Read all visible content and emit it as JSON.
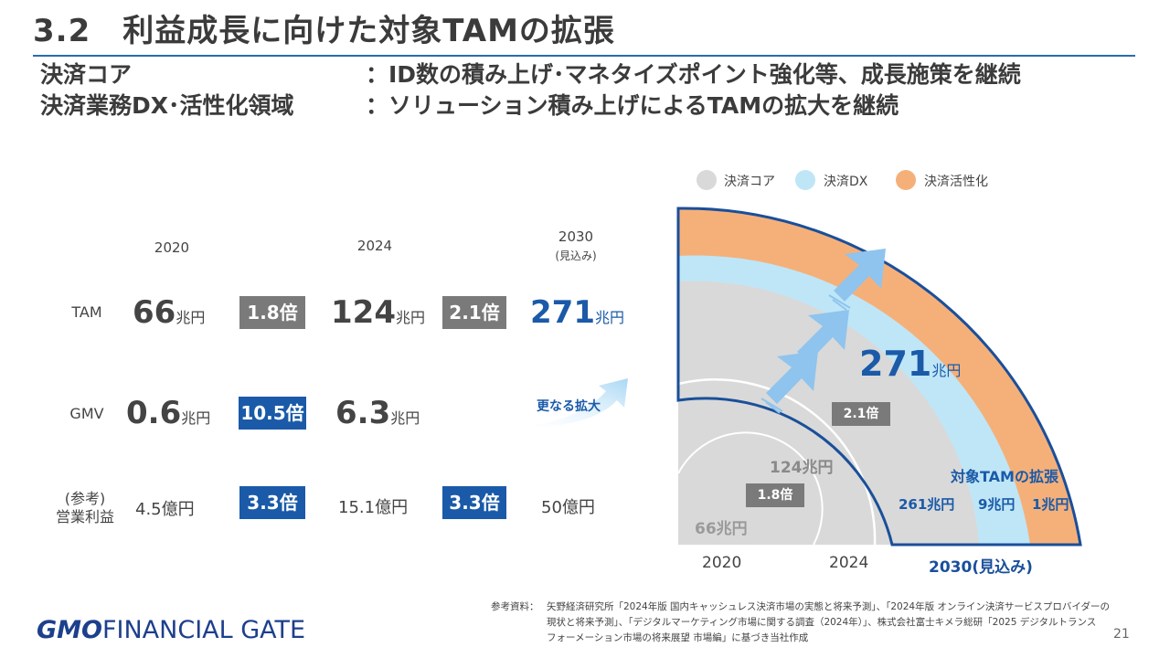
{
  "header": {
    "title": "3.2　利益成長に向けた対象TAMの拡張",
    "line1_label": "決済コア",
    "line1_text": "：ID数の積み上げ･マネタイズポイント強化等、成長施策を継続",
    "line2_label": "決済業務DX･活性化領域",
    "line2_text": "：ソリューション積み上げによるTAMの拡大を継続"
  },
  "table": {
    "years": [
      "2020",
      "2024",
      "2030"
    ],
    "year_note": "(見込み)",
    "rows": [
      {
        "label": "TAM",
        "v2020": "66",
        "u2020": "兆円",
        "m1": "1.8倍",
        "v2024": "124",
        "u2024": "兆円",
        "m2": "2.1倍",
        "v2030": "271",
        "u2030": "兆円"
      },
      {
        "label": "GMV",
        "v2020": "0.6",
        "u2020": "兆円",
        "m1": "10.5倍",
        "v2024": "6.3",
        "u2024": "兆円"
      },
      {
        "label1": "(参考)",
        "label2": "営業利益",
        "v2020": "4.5億円",
        "m1": "3.3倍",
        "v2024": "15.1億円",
        "m2": "3.3倍",
        "v2030": "50億円"
      }
    ],
    "expansion_label": "更なる拡大"
  },
  "legend": [
    {
      "label": "決済コア",
      "color": "#d9d9d9"
    },
    {
      "label": "決済DX",
      "color": "#bfe6f7"
    },
    {
      "label": "決済活性化",
      "color": "#f5b07a"
    }
  ],
  "diagram": {
    "big_value": "271",
    "big_unit": "兆円",
    "mult_2024_2030": "2.1倍",
    "mult_2020_2024": "1.8倍",
    "label_124": "124兆円",
    "label_66": "66兆円",
    "expansion_title": "対象TAMの拡張",
    "seg_core": "261兆円",
    "seg_dx": "9兆円",
    "seg_act": "1兆円",
    "axis_2020": "2020",
    "axis_2024": "2024",
    "axis_2030": "2030(見込み)"
  },
  "footer": {
    "ref_label": "参考資料：",
    "ref_line1": "矢野経済研究所「2024年版 国内キャッシュレス決済市場の実態と将来予測」、「2024年版 オンライン決済サービスプロバイダーの",
    "ref_line2": "現状と将来予測」、「デジタルマーケティング市場に関する調査（2024年）」、株式会社富士キメラ総研「2025 デジタルトランス",
    "ref_line3": "フォーメーション市場の将来展望 市場編」に基づき当社作成",
    "logo_gmo": "GMO",
    "logo_text": "FINANCIAL GATE",
    "page_number": "21"
  }
}
